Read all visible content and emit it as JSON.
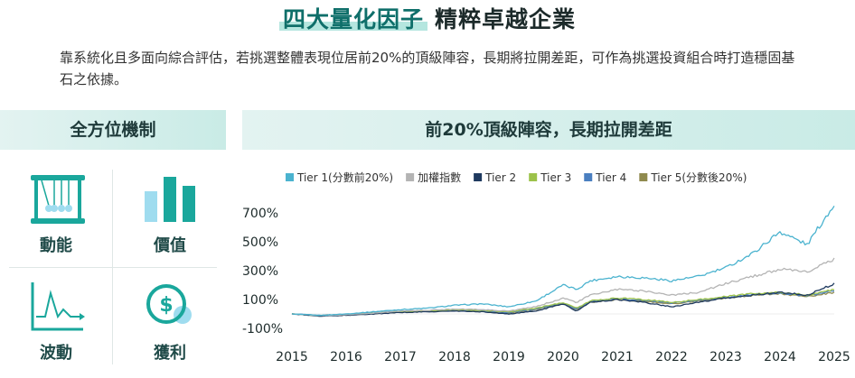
{
  "header": {
    "title_highlight": "四大量化因子",
    "title_rest": "精粹卓越企業",
    "intro": "靠系統化且多面向綜合評估，若挑選整體表現位居前20%的頂級陣容，長期將拉開差距，可作為挑選投資組合時打造穩固基石之依據。"
  },
  "left_panel": {
    "heading": "全方位機制",
    "factors": [
      {
        "label": "動能",
        "icon": "newtons-cradle-icon"
      },
      {
        "label": "價值",
        "icon": "bar-chart-icon"
      },
      {
        "label": "波動",
        "icon": "line-chart-icon"
      },
      {
        "label": "獲利",
        "icon": "dollar-coin-icon"
      }
    ]
  },
  "right_panel": {
    "heading": "前20%頂級陣容，長期拉開差距"
  },
  "colors": {
    "tier1": "#4bb3cf",
    "index": "#b4b4b4",
    "tier2": "#1f3a5f",
    "tier3": "#9cc24a",
    "tier4": "#4a7fc0",
    "tier5": "#8f8a4e",
    "accent": "#1aa79c",
    "icon_light": "#9fdcef"
  },
  "chart_data": {
    "type": "line",
    "title": "前20%頂級陣容，長期拉開差距",
    "xlabel": "",
    "ylabel": "",
    "x_ticks": [
      "2015",
      "2016",
      "2017",
      "2018",
      "2019",
      "2020",
      "2021",
      "2022",
      "2023",
      "2024",
      "2025"
    ],
    "y_ticks": [
      "700%",
      "500%",
      "300%",
      "100%",
      "-100%"
    ],
    "ylim": [
      -150,
      800
    ],
    "x": [
      2015,
      2015.5,
      2016,
      2016.5,
      2017,
      2017.5,
      2018,
      2018.5,
      2019,
      2019.5,
      2020,
      2020.25,
      2020.5,
      2021,
      2021.5,
      2022,
      2022.5,
      2023,
      2023.5,
      2024,
      2024.5,
      2025
    ],
    "legend_position": "top",
    "grid": false,
    "series": [
      {
        "name": "Tier 1(分數前20%)",
        "color_key": "tier1",
        "values": [
          0,
          -10,
          0,
          15,
          30,
          40,
          60,
          70,
          50,
          90,
          200,
          170,
          230,
          260,
          250,
          230,
          260,
          320,
          420,
          570,
          480,
          760
        ]
      },
      {
        "name": "加權指數",
        "color_key": "index",
        "values": [
          0,
          -12,
          -5,
          5,
          20,
          25,
          35,
          30,
          20,
          50,
          110,
          80,
          130,
          170,
          160,
          130,
          150,
          210,
          260,
          310,
          290,
          380
        ]
      },
      {
        "name": "Tier 2",
        "color_key": "tier2",
        "values": [
          0,
          -15,
          -10,
          0,
          10,
          15,
          20,
          15,
          0,
          20,
          70,
          20,
          80,
          100,
          80,
          50,
          80,
          110,
          130,
          150,
          130,
          210
        ]
      },
      {
        "name": "Tier 3",
        "color_key": "tier3",
        "values": [
          0,
          -12,
          -5,
          5,
          15,
          20,
          30,
          25,
          15,
          40,
          80,
          40,
          90,
          110,
          100,
          80,
          100,
          120,
          140,
          150,
          130,
          170
        ]
      },
      {
        "name": "Tier 4",
        "color_key": "tier4",
        "values": [
          0,
          -10,
          -3,
          8,
          18,
          22,
          28,
          22,
          10,
          35,
          75,
          35,
          85,
          105,
          95,
          75,
          95,
          115,
          135,
          145,
          125,
          160
        ]
      },
      {
        "name": "Tier 5(分數後20%)",
        "color_key": "tier5",
        "values": [
          0,
          -14,
          -8,
          2,
          12,
          18,
          25,
          20,
          8,
          30,
          70,
          30,
          80,
          100,
          88,
          70,
          90,
          110,
          128,
          140,
          120,
          150
        ]
      }
    ]
  }
}
